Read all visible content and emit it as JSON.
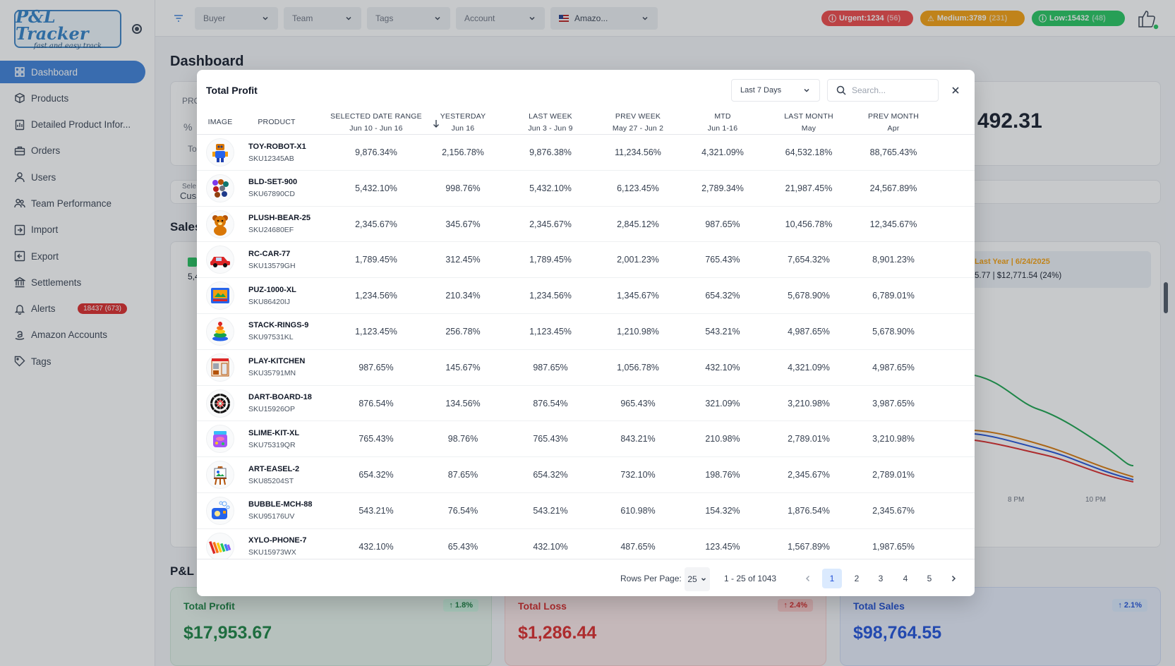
{
  "app": {
    "logo_text": "P&L Tracker",
    "logo_tagline": "fast and easy track"
  },
  "sidebar": {
    "items": [
      {
        "label": "Dashboard",
        "icon": "grid-icon",
        "active": true
      },
      {
        "label": "Products",
        "icon": "box-icon"
      },
      {
        "label": "Detailed Product Infor...",
        "icon": "report-icon"
      },
      {
        "label": "Orders",
        "icon": "briefcase-icon"
      },
      {
        "label": "Users",
        "icon": "user-icon"
      },
      {
        "label": "Team Performance",
        "icon": "team-icon"
      },
      {
        "label": "Import",
        "icon": "import-icon"
      },
      {
        "label": "Export",
        "icon": "export-icon"
      },
      {
        "label": "Settlements",
        "icon": "bank-icon"
      },
      {
        "label": "Alerts",
        "icon": "bell-icon",
        "badge": "18437 (673)"
      },
      {
        "label": "Amazon Accounts",
        "icon": "amazon-icon"
      },
      {
        "label": "Tags",
        "icon": "tag-icon"
      }
    ]
  },
  "header": {
    "filters": [
      {
        "label": "Buyer"
      },
      {
        "label": "Team"
      },
      {
        "label": "Tags"
      },
      {
        "label": "Account"
      },
      {
        "label": "Amazo..."
      }
    ],
    "alerts": {
      "urgent": {
        "label": "Urgent:1234",
        "count": "(56)"
      },
      "medium": {
        "label": "Medium:3789",
        "count": "(231)"
      },
      "low": {
        "label": "Low:15432",
        "count": "(48)"
      }
    }
  },
  "main": {
    "title": "Dashboard",
    "frag_pro": "PRO",
    "frag_pct": "%",
    "frag_to": "To",
    "frag_sele": "Sele",
    "frag_cus": "Cus",
    "big_value": "492.31",
    "sales_section": "Sales",
    "frag_54": "5,4",
    "legend_line1": "Last Year | 6/24/2025",
    "legend_line2": "5.77 | $12,771.54 (24%)",
    "axis_8pm": "8 PM",
    "axis_10pm": "10 PM",
    "pl_section": "P&L C",
    "kpis": {
      "profit": {
        "title": "Total Profit",
        "value": "$17,953.67",
        "change": "↑ 1.8%"
      },
      "loss": {
        "title": "Total Loss",
        "value": "$1,286.44",
        "change": "↑ 2.4%"
      },
      "sales": {
        "title": "Total Sales",
        "value": "$98,764.55",
        "change": "↑ 2.1%"
      }
    }
  },
  "modal": {
    "title": "Total Profit",
    "range": "Last 7 Days",
    "search_placeholder": "Search...",
    "columns": [
      {
        "label": "IMAGE",
        "sub": ""
      },
      {
        "label": "PRODUCT",
        "sub": ""
      },
      {
        "label": "SELECTED DATE RANGE",
        "sub": "Jun 10 - Jun 16"
      },
      {
        "label": "YESTERDAY",
        "sub": "Jun 16"
      },
      {
        "label": "LAST WEEK",
        "sub": "Jun 3 - Jun 9"
      },
      {
        "label": "PREV WEEK",
        "sub": "May 27 - Jun 2"
      },
      {
        "label": "MTD",
        "sub": "Jun 1-16"
      },
      {
        "label": "LAST MONTH",
        "sub": "May"
      },
      {
        "label": "PREV MONTH",
        "sub": "Apr"
      }
    ],
    "rows": [
      {
        "name": "TOY-ROBOT-X1",
        "sku": "SKU12345AB",
        "icon": "robot-icon",
        "vals": [
          "9,876.34%",
          "2,156.78%",
          "9,876.38%",
          "11,234.56%",
          "4,321.09%",
          "64,532.18%",
          "88,765.43%"
        ]
      },
      {
        "name": "BLD-SET-900",
        "sku": "SKU67890CD",
        "icon": "building-blocks-icon",
        "vals": [
          "5,432.10%",
          "998.76%",
          "5,432.10%",
          "6,123.45%",
          "2,789.34%",
          "21,987.45%",
          "24,567.89%"
        ]
      },
      {
        "name": "PLUSH-BEAR-25",
        "sku": "SKU24680EF",
        "icon": "teddy-bear-icon",
        "vals": [
          "2,345.67%",
          "345.67%",
          "2,345.67%",
          "2,845.12%",
          "987.65%",
          "10,456.78%",
          "12,345.67%"
        ]
      },
      {
        "name": "RC-CAR-77",
        "sku": "SKU13579GH",
        "icon": "toy-car-icon",
        "vals": [
          "1,789.45%",
          "312.45%",
          "1,789.45%",
          "2,001.23%",
          "765.43%",
          "7,654.32%",
          "8,901.23%"
        ]
      },
      {
        "name": "PUZ-1000-XL",
        "sku": "SKU86420IJ",
        "icon": "puzzle-box-icon",
        "vals": [
          "1,234.56%",
          "210.34%",
          "1,234.56%",
          "1,345.67%",
          "654.32%",
          "5,678.90%",
          "6,789.01%"
        ]
      },
      {
        "name": "STACK-RINGS-9",
        "sku": "SKU97531KL",
        "icon": "stacking-rings-icon",
        "vals": [
          "1,123.45%",
          "256.78%",
          "1,123.45%",
          "1,210.98%",
          "543.21%",
          "4,987.65%",
          "5,678.90%"
        ]
      },
      {
        "name": "PLAY-KITCHEN",
        "sku": "SKU35791MN",
        "icon": "play-kitchen-icon",
        "vals": [
          "987.65%",
          "145.67%",
          "987.65%",
          "1,056.78%",
          "432.10%",
          "4,321.09%",
          "4,987.65%"
        ]
      },
      {
        "name": "DART-BOARD-18",
        "sku": "SKU15926OP",
        "icon": "dart-board-icon",
        "vals": [
          "876.54%",
          "134.56%",
          "876.54%",
          "965.43%",
          "321.09%",
          "3,210.98%",
          "3,987.65%"
        ]
      },
      {
        "name": "SLIME-KIT-XL",
        "sku": "SKU75319QR",
        "icon": "slime-jar-icon",
        "vals": [
          "765.43%",
          "98.76%",
          "765.43%",
          "843.21%",
          "210.98%",
          "2,789.01%",
          "3,210.98%"
        ]
      },
      {
        "name": "ART-EASEL-2",
        "sku": "SKU85204ST",
        "icon": "easel-icon",
        "vals": [
          "654.32%",
          "87.65%",
          "654.32%",
          "732.10%",
          "198.76%",
          "2,345.67%",
          "2,789.01%"
        ]
      },
      {
        "name": "BUBBLE-MCH-88",
        "sku": "SKU95176UV",
        "icon": "bubble-machine-icon",
        "vals": [
          "543.21%",
          "76.54%",
          "543.21%",
          "610.98%",
          "154.32%",
          "1,876.54%",
          "2,345.67%"
        ]
      },
      {
        "name": "XYLO-PHONE-7",
        "sku": "SKU15973WX",
        "icon": "xylophone-icon",
        "vals": [
          "432.10%",
          "65.43%",
          "432.10%",
          "487.65%",
          "123.45%",
          "1,567.89%",
          "1,987.65%"
        ]
      }
    ],
    "pager": {
      "rows_label": "Rows Per Page:",
      "rows_value": "25",
      "range": "1 - 25 of 1043",
      "pages": [
        "1",
        "2",
        "3",
        "4",
        "5"
      ],
      "active_page": "1"
    }
  },
  "colors": {
    "accent": "#3b7ed8",
    "profit": "#15803d",
    "loss": "#dc2626",
    "sales": "#1d4ed8"
  }
}
